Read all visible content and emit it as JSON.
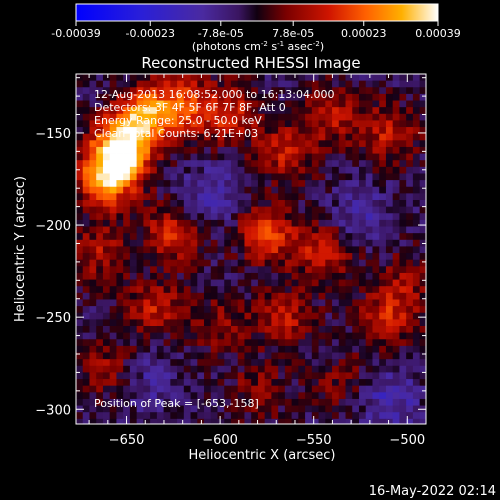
{
  "colorbar": {
    "tick_labels": [
      "-0.00039",
      "-0.00023",
      "-7.8e-05",
      "7.8e-05",
      "0.00023",
      "0.00039"
    ],
    "min": -0.00039,
    "max": 0.00039,
    "unit_prefix": "(photons cm",
    "unit_exp1": "-2",
    "unit_mid": " s",
    "unit_exp2": "-1",
    "unit_mid2": " asec",
    "unit_exp3": "-2",
    "unit_suffix": ")"
  },
  "chart_data": {
    "type": "heatmap",
    "title": "Reconstructed RHESSI Image",
    "xlabel": "Heliocentric X (arcsec)",
    "ylabel": "Heliocentric Y (arcsec)",
    "xlim": [
      -677,
      -490
    ],
    "ylim": [
      -308,
      -118
    ],
    "x_ticks": [
      -650,
      -600,
      -550,
      -500
    ],
    "y_ticks": [
      -300,
      -250,
      -200,
      -150
    ],
    "x_tick_labels": [
      "−650",
      "−600",
      "−550",
      "−500"
    ],
    "y_tick_labels": [
      "−300",
      "−250",
      "−200",
      "−150"
    ],
    "info_lines": [
      "12-Aug-2013 16:08:52.000 to 16:13:04.000",
      "Detectors: 3F 4F 5F 6F 7F 8F, Att 0",
      "Energy Range: 25.0 - 50.0 keV",
      "Clean   Total Counts: 6.21E+03"
    ],
    "peak_label": "Position of Peak = [-653,-158]",
    "peak": [
      -653,
      -158
    ],
    "value_range": [
      -0.00039,
      0.00039
    ],
    "sources": [
      {
        "x": -653,
        "y": -158,
        "value": 0.00039
      },
      {
        "x": -660,
        "y": -175,
        "value": 0.00033
      },
      {
        "x": -640,
        "y": -140,
        "value": 0.00028
      },
      {
        "x": -620,
        "y": -135,
        "value": 0.00022
      },
      {
        "x": -595,
        "y": -140,
        "value": 0.00018
      },
      {
        "x": -565,
        "y": -160,
        "value": 0.00017
      },
      {
        "x": -540,
        "y": -140,
        "value": 0.00015
      },
      {
        "x": -510,
        "y": -150,
        "value": 0.00016
      },
      {
        "x": -575,
        "y": -205,
        "value": 0.00021
      },
      {
        "x": -545,
        "y": -215,
        "value": 0.00017
      },
      {
        "x": -625,
        "y": -205,
        "value": 0.00019
      },
      {
        "x": -665,
        "y": -215,
        "value": 0.00014
      },
      {
        "x": -635,
        "y": -245,
        "value": 0.00016
      },
      {
        "x": -565,
        "y": -250,
        "value": 0.00015
      },
      {
        "x": -510,
        "y": -250,
        "value": 0.00017
      },
      {
        "x": -500,
        "y": -230,
        "value": 0.0001
      },
      {
        "x": -600,
        "y": -255,
        "value": 0.00011
      },
      {
        "x": -660,
        "y": -278,
        "value": 0.00012
      },
      {
        "x": -580,
        "y": -290,
        "value": 0.0001
      },
      {
        "x": -535,
        "y": -285,
        "value": 9e-05
      },
      {
        "x": -510,
        "y": -295,
        "value": -0.00012
      },
      {
        "x": -640,
        "y": -285,
        "value": -8e-05
      },
      {
        "x": -605,
        "y": -185,
        "value": -0.00011
      },
      {
        "x": -525,
        "y": -195,
        "value": -9e-05
      }
    ]
  },
  "footer": {
    "date": "16-May-2022 02:14"
  }
}
